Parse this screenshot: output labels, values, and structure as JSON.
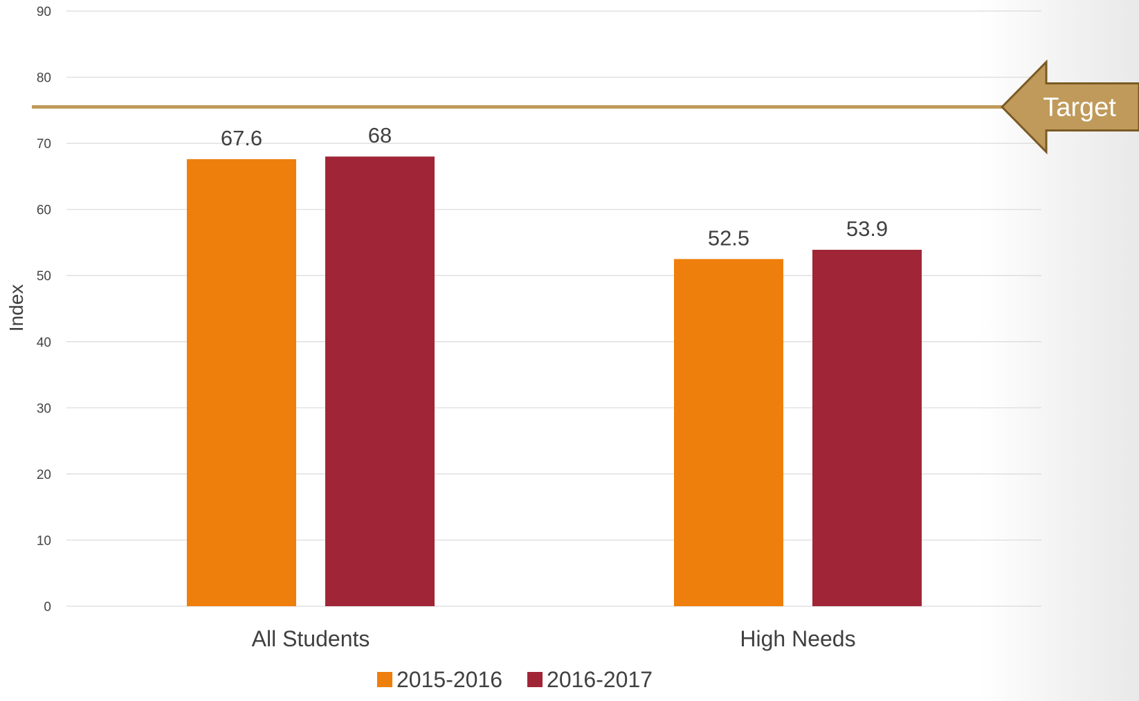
{
  "chart_data": {
    "type": "bar",
    "title": "",
    "xlabel": "",
    "ylabel": "Index",
    "ylim": [
      0,
      90
    ],
    "yticks": [
      0,
      10,
      20,
      30,
      40,
      50,
      60,
      70,
      80,
      90
    ],
    "grid": true,
    "legend_position": "bottom",
    "categories": [
      "All Students",
      "High Needs"
    ],
    "series": [
      {
        "name": "2015-2016",
        "color": "#EE7F0C",
        "values": [
          67.6,
          52.5
        ],
        "labels": [
          "67.6",
          "52.5"
        ]
      },
      {
        "name": "2016-2017",
        "color": "#A02637",
        "values": [
          68,
          53.9
        ],
        "labels": [
          "68",
          "53.9"
        ]
      }
    ],
    "target": {
      "label": "Target",
      "value": 75.5,
      "color": "#C09A5B",
      "border_color": "#7A5A24"
    }
  }
}
